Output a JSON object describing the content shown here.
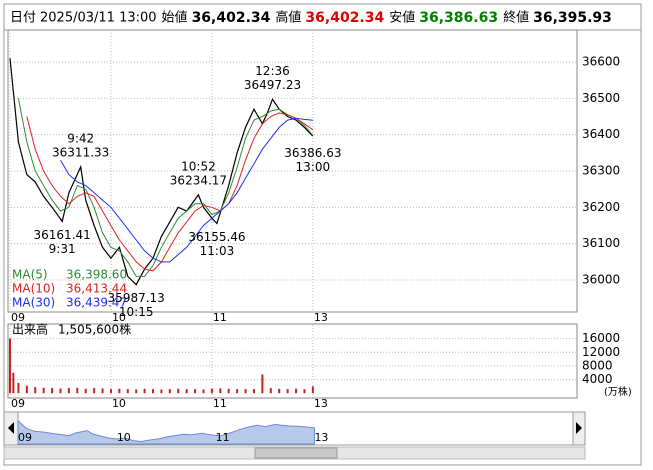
{
  "header": {
    "items": [
      {
        "label": "日付",
        "value": "2025/03/11 13:00",
        "color": "#000000",
        "bold": false
      },
      {
        "label": "始値",
        "value": "36,402.34",
        "color": "#000000",
        "bold": true
      },
      {
        "label": "高値",
        "value": "36,402.34",
        "color": "#e00000",
        "bold": true
      },
      {
        "label": "安値",
        "value": "36,386.63",
        "color": "#008000",
        "bold": true
      },
      {
        "label": "終値",
        "value": "36,395.93",
        "color": "#000000",
        "bold": true
      }
    ]
  },
  "chart_data": [
    {
      "type": "line",
      "xlim": [
        0,
        337
      ],
      "xticks": [
        {
          "value": 0,
          "label": "09"
        },
        {
          "value": 60,
          "label": "10"
        },
        {
          "value": 120,
          "label": "11"
        },
        {
          "value": 180,
          "label": "13"
        }
      ],
      "ylim": [
        35912,
        36688
      ],
      "yticks": [
        36000,
        36100,
        36200,
        36300,
        36400,
        36500,
        36600
      ],
      "grid": true,
      "series": [
        {
          "color": "#000000",
          "x": [
            0,
            5,
            10,
            15,
            20,
            25,
            31,
            35,
            42,
            45,
            50,
            55,
            60,
            65,
            70,
            75,
            80,
            85,
            90,
            95,
            100,
            105,
            112,
            115,
            120,
            123,
            130,
            135,
            140,
            145,
            150,
            153,
            156,
            160,
            165,
            170,
            175,
            180
          ],
          "values": [
            36610,
            36380,
            36290,
            36270,
            36230,
            36200,
            36161.41,
            36240,
            36311.33,
            36220,
            36150,
            36090,
            36060,
            36090,
            36010,
            35987.13,
            36030,
            36060,
            36120,
            36160,
            36200,
            36190,
            36234.17,
            36200,
            36170,
            36155.46,
            36260,
            36350,
            36420,
            36470,
            36430,
            36460,
            36497.23,
            36470,
            36450,
            36440,
            36420,
            36395.93
          ]
        },
        {
          "name": "MA(5)",
          "color": "#2e8b2e",
          "latest": {
            "value": 36398.6,
            "label": "36,398.60"
          },
          "x": [
            5,
            10,
            15,
            20,
            25,
            30,
            35,
            40,
            45,
            50,
            55,
            60,
            65,
            70,
            75,
            80,
            85,
            90,
            95,
            100,
            105,
            110,
            115,
            120,
            125,
            130,
            135,
            140,
            145,
            150,
            155,
            160,
            165,
            170,
            175,
            180
          ],
          "values": [
            36500,
            36380,
            36300,
            36260,
            36220,
            36190,
            36200,
            36260,
            36250,
            36200,
            36130,
            36090,
            36080,
            36050,
            36010,
            36010,
            36040,
            36090,
            36130,
            36170,
            36190,
            36210,
            36210,
            36180,
            36190,
            36240,
            36310,
            36390,
            36440,
            36450,
            36465,
            36470,
            36455,
            36445,
            36425,
            36398.6
          ]
        },
        {
          "name": "MA(10)",
          "color": "#e02020",
          "latest": {
            "value": 36413.44,
            "label": "36,413.44"
          },
          "x": [
            10,
            15,
            20,
            25,
            30,
            35,
            40,
            45,
            50,
            55,
            60,
            65,
            70,
            75,
            80,
            85,
            90,
            95,
            100,
            105,
            110,
            115,
            120,
            125,
            130,
            135,
            140,
            145,
            150,
            155,
            160,
            165,
            170,
            175,
            180
          ],
          "values": [
            36450,
            36360,
            36300,
            36260,
            36230,
            36210,
            36230,
            36240,
            36230,
            36190,
            36150,
            36110,
            36080,
            36050,
            36030,
            36025,
            36050,
            36090,
            36130,
            36160,
            36190,
            36205,
            36200,
            36190,
            36210,
            36260,
            36330,
            36390,
            36430,
            36450,
            36460,
            36455,
            36445,
            36430,
            36413.44
          ]
        },
        {
          "name": "MA(30)",
          "color": "#2030f0",
          "latest": {
            "value": 36439.47,
            "label": "36,439.47"
          },
          "x": [
            30,
            35,
            40,
            45,
            50,
            55,
            60,
            65,
            70,
            75,
            80,
            85,
            90,
            95,
            100,
            105,
            110,
            115,
            120,
            125,
            130,
            135,
            140,
            145,
            150,
            155,
            160,
            165,
            170,
            175,
            180
          ],
          "values": [
            36330,
            36290,
            36270,
            36260,
            36240,
            36220,
            36200,
            36170,
            36140,
            36110,
            36080,
            36060,
            36050,
            36050,
            36070,
            36090,
            36120,
            36150,
            36170,
            36190,
            36210,
            36240,
            36280,
            36320,
            36360,
            36390,
            36420,
            36440,
            36445,
            36442,
            36439.47
          ]
        }
      ],
      "annotations": [
        {
          "x": 42,
          "value": 36311.33,
          "time": "9:42",
          "position": "above"
        },
        {
          "x": 31,
          "value": 36161.41,
          "time": "9:31",
          "position": "below"
        },
        {
          "x": 112,
          "value": 36234.17,
          "time": "10:52",
          "position": "above"
        },
        {
          "x": 123,
          "value": 36155.46,
          "time": "11:03",
          "position": "below"
        },
        {
          "x": 75,
          "value": 35987.13,
          "time": "10:15",
          "position": "below"
        },
        {
          "x": 156,
          "value": 36497.23,
          "time": "12:36",
          "position": "above"
        },
        {
          "x": 180,
          "value": 36386.63,
          "time": "13:00",
          "position": "below"
        }
      ]
    },
    {
      "type": "bar",
      "title": "出来高",
      "total_label": "1,505,600株",
      "unit_label": "(万株)",
      "color": "#cc2020",
      "xlim": [
        0,
        337
      ],
      "xticks": [
        {
          "value": 0,
          "label": "09"
        },
        {
          "value": 60,
          "label": "10"
        },
        {
          "value": 120,
          "label": "11"
        },
        {
          "value": 180,
          "label": "13"
        }
      ],
      "ylim": [
        -1400,
        20000
      ],
      "yticks": [
        4000,
        8000,
        12000,
        16000
      ],
      "grid": true,
      "x": [
        0,
        2,
        5,
        10,
        15,
        20,
        25,
        30,
        35,
        40,
        45,
        50,
        55,
        60,
        65,
        70,
        75,
        80,
        85,
        90,
        95,
        100,
        105,
        110,
        115,
        120,
        125,
        130,
        135,
        140,
        145,
        150,
        155,
        160,
        165,
        170,
        175,
        180
      ],
      "values": [
        16000,
        6000,
        3000,
        2200,
        1800,
        1600,
        1500,
        1400,
        1500,
        1600,
        1300,
        1500,
        1400,
        1200,
        1300,
        1200,
        1100,
        1300,
        1200,
        1100,
        1200,
        1300,
        1200,
        1200,
        1100,
        1300,
        1400,
        1300,
        1200,
        1200,
        1200,
        5500,
        1500,
        1300,
        1200,
        1300,
        1200,
        2000
      ]
    }
  ]
}
